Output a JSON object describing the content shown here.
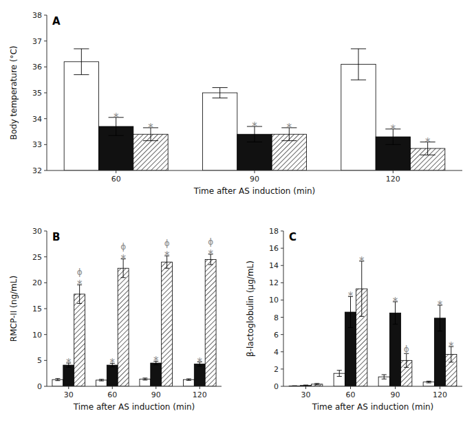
{
  "chart_data": [
    {
      "type": "bar",
      "title": "A",
      "x_label": "Time after AS induction (min)",
      "y_label": "Body temperature (°C)",
      "categories": [
        "60",
        "90",
        "120"
      ],
      "ylim": [
        32,
        38
      ],
      "yticks": [
        32,
        33,
        34,
        35,
        36,
        37,
        38
      ],
      "grid": false,
      "series": [
        {
          "color": "#ffffff",
          "values": [
            36.2,
            35.0,
            36.1
          ],
          "errors": [
            0.5,
            0.2,
            0.6
          ],
          "annotations": [
            [],
            [],
            []
          ]
        },
        {
          "color": "#111111",
          "values": [
            33.7,
            33.4,
            33.3
          ],
          "errors": [
            0.35,
            0.3,
            0.3
          ],
          "annotations": [
            [
              {
                "text": "*",
                "color": "#888888"
              }
            ],
            [
              {
                "text": "*",
                "color": "#888888"
              }
            ],
            [
              {
                "text": "*",
                "color": "#888888"
              }
            ]
          ]
        },
        {
          "color": "#ffffff",
          "values": [
            33.4,
            33.4,
            32.85
          ],
          "errors": [
            0.25,
            0.25,
            0.25
          ],
          "annotations": [
            [
              {
                "text": "*",
                "color": "#888888"
              }
            ],
            [
              {
                "text": "*",
                "color": "#888888"
              }
            ],
            [
              {
                "text": "*",
                "color": "#888888"
              }
            ]
          ]
        }
      ]
    },
    {
      "type": "bar",
      "title": "B",
      "x_label": "Time after AS induction (min)",
      "y_label": "RMCP-II (ng/mL)",
      "categories": [
        "30",
        "60",
        "90",
        "120"
      ],
      "ylim": [
        0,
        30
      ],
      "yticks": [
        0,
        5,
        10,
        15,
        20,
        25,
        30
      ],
      "grid": false,
      "series": [
        {
          "color": "#ffffff",
          "values": [
            1.3,
            1.2,
            1.4,
            1.3
          ],
          "errors": [
            0.2,
            0.15,
            0.2,
            0.15
          ],
          "annotations": [
            [],
            [],
            [],
            []
          ]
        },
        {
          "color": "#111111",
          "values": [
            4.1,
            4.1,
            4.5,
            4.3
          ],
          "errors": [
            0.4,
            0.35,
            0.35,
            0.4
          ],
          "annotations": [
            [
              {
                "text": "*",
                "color": "#888888"
              }
            ],
            [
              {
                "text": "*",
                "color": "#888888"
              }
            ],
            [
              {
                "text": "*",
                "color": "#888888"
              }
            ],
            [
              {
                "text": "*",
                "color": "#888888"
              }
            ]
          ]
        },
        {
          "color": "#ffffff",
          "values": [
            17.8,
            22.8,
            24.0,
            24.5
          ],
          "errors": [
            1.8,
            1.8,
            1.2,
            1.0
          ],
          "annotations": [
            [
              {
                "text": "*",
                "color": "#888888"
              },
              {
                "text": "ϕ",
                "color": "#888888"
              }
            ],
            [
              {
                "text": "*",
                "color": "#888888"
              },
              {
                "text": "ϕ",
                "color": "#888888"
              }
            ],
            [
              {
                "text": "*",
                "color": "#888888"
              },
              {
                "text": "ϕ",
                "color": "#888888"
              }
            ],
            [
              {
                "text": "*",
                "color": "#888888"
              },
              {
                "text": "ϕ",
                "color": "#888888"
              }
            ]
          ]
        }
      ]
    },
    {
      "type": "bar",
      "title": "C",
      "x_label": "Time after AS induction (min)",
      "y_label": "β-lactoglobulin (μg/mL)",
      "categories": [
        "30",
        "60",
        "90",
        "120"
      ],
      "ylim": [
        0,
        18
      ],
      "yticks": [
        0,
        2,
        4,
        6,
        8,
        10,
        12,
        14,
        16,
        18
      ],
      "grid": false,
      "series": [
        {
          "color": "#ffffff",
          "values": [
            0.05,
            1.5,
            1.1,
            0.5
          ],
          "errors": [
            0.02,
            0.35,
            0.25,
            0.1
          ],
          "annotations": [
            [],
            [],
            [],
            []
          ]
        },
        {
          "color": "#111111",
          "values": [
            0.1,
            8.6,
            8.5,
            7.9
          ],
          "errors": [
            0.05,
            1.8,
            1.3,
            1.5
          ],
          "annotations": [
            [],
            [
              {
                "text": "*",
                "color": "#888888"
              }
            ],
            [
              {
                "text": "*",
                "color": "#888888"
              }
            ],
            [
              {
                "text": "*",
                "color": "#888888"
              }
            ]
          ]
        },
        {
          "color": "#ffffff",
          "values": [
            0.25,
            11.3,
            3.0,
            3.7
          ],
          "errors": [
            0.08,
            3.2,
            0.8,
            0.9
          ],
          "annotations": [
            [],
            [
              {
                "text": "*",
                "color": "#888888"
              }
            ],
            [
              {
                "text": "ϕ",
                "color": "#888888"
              }
            ],
            [
              {
                "text": "*",
                "color": "#888888"
              }
            ]
          ]
        }
      ]
    }
  ]
}
